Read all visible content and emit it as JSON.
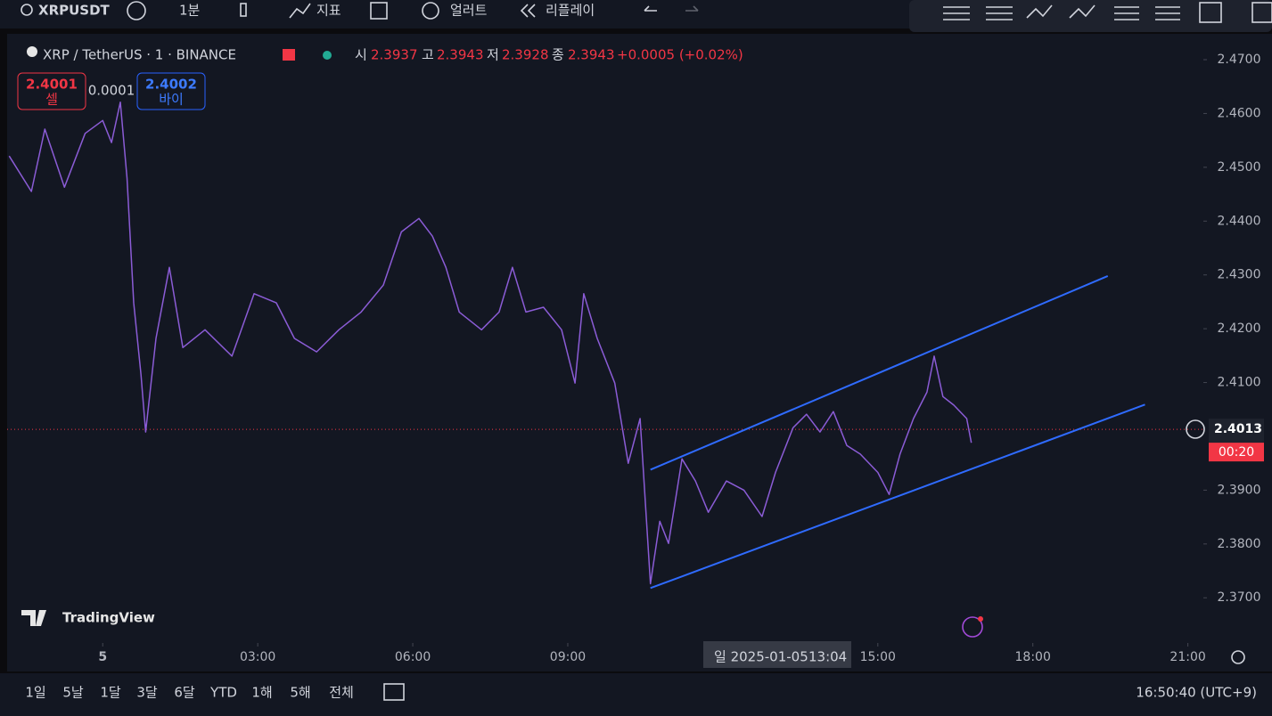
{
  "toolbar": {
    "symbol": "XRPUSDT",
    "interval": "1분",
    "indicators": "지표",
    "alerts": "얼러트",
    "replay": "리플레이"
  },
  "legend": {
    "name": "XRP / TetherUS · 1 · BINANCE",
    "open_label": "시",
    "open": "2.3937",
    "high_label": "고",
    "high": "2.3943",
    "low_label": "저",
    "low": "2.3928",
    "close_label": "종",
    "close": "2.3943",
    "change": "+0.0005 (+0.02%)"
  },
  "trade": {
    "sell_price": "2.4001",
    "sell_label": "셀",
    "spread": "0.0001",
    "buy_price": "2.4002",
    "buy_label": "바이"
  },
  "watermark": "TradingView",
  "crosshair": {
    "date": "일 2025-01-05",
    "time": "13:04"
  },
  "chart_data": {
    "type": "line",
    "x": [
      -1.81,
      -1.38,
      -1.12,
      -0.74,
      -0.34,
      0,
      0.17,
      0.34,
      0.47,
      0.6,
      0.74,
      0.83,
      1.03,
      1.29,
      1.55,
      1.98,
      2.5,
      2.93,
      3.36,
      3.71,
      4.14,
      4.57,
      5.0,
      5.43,
      5.78,
      6.12,
      6.38,
      6.64,
      6.9,
      7.33,
      7.67,
      7.93,
      8.19,
      8.53,
      8.88,
      9.14,
      9.31,
      9.57,
      9.91,
      10.17,
      10.4,
      10.6,
      10.78,
      10.95,
      11.21,
      11.47,
      11.72,
      12.07,
      12.41,
      12.76,
      13.02,
      13.36,
      13.62,
      13.88,
      14.14,
      14.4,
      14.66,
      15.0,
      15.22,
      15.43,
      15.69,
      15.95,
      16.09,
      16.26,
      16.47,
      16.72,
      16.81
    ],
    "series": [
      {
        "name": "XRP / TetherUS",
        "color": "#8b5cd6",
        "values": [
          2.4521,
          2.4455,
          2.4571,
          2.4463,
          2.4563,
          2.4587,
          2.4546,
          2.4621,
          2.448,
          2.4248,
          2.4116,
          2.4008,
          2.4182,
          2.4314,
          2.4165,
          2.4198,
          2.4149,
          2.4265,
          2.4248,
          2.4182,
          2.4157,
          2.4198,
          2.4231,
          2.4281,
          2.438,
          2.4405,
          2.4372,
          2.4314,
          2.4231,
          2.4198,
          2.4231,
          2.4314,
          2.4231,
          2.424,
          2.4198,
          2.4099,
          2.4265,
          2.4182,
          2.4099,
          2.395,
          2.4033,
          2.3726,
          2.3842,
          2.3801,
          2.3958,
          2.3917,
          2.3859,
          2.3917,
          2.39,
          2.3851,
          2.3933,
          2.4016,
          2.4041,
          2.4008,
          2.4046,
          2.3983,
          2.3967,
          2.3933,
          2.3892,
          2.3967,
          2.4033,
          2.4082,
          2.4149,
          2.4074,
          2.4058,
          2.4033,
          2.3988
        ]
      }
    ],
    "xlim": [
      -1.85,
      21.3
    ],
    "ylim": [
      2.3616,
      2.4748
    ],
    "xticks": [
      {
        "value": 0,
        "label": "5"
      },
      {
        "value": 3,
        "label": "03:00"
      },
      {
        "value": 6,
        "label": "06:00"
      },
      {
        "value": 9,
        "label": "09:00"
      },
      {
        "value": 15,
        "label": "15:00"
      },
      {
        "value": 18,
        "label": "18:00"
      },
      {
        "value": 21,
        "label": "21:00"
      }
    ],
    "yticks": [
      {
        "value": 2.47,
        "label": "2.4700"
      },
      {
        "value": 2.46,
        "label": "2.4600"
      },
      {
        "value": 2.45,
        "label": "2.4500"
      },
      {
        "value": 2.44,
        "label": "2.4400"
      },
      {
        "value": 2.43,
        "label": "2.4300"
      },
      {
        "value": 2.42,
        "label": "2.4200"
      },
      {
        "value": 2.41,
        "label": "2.4100"
      },
      {
        "value": 2.39,
        "label": "2.3900"
      },
      {
        "value": 2.38,
        "label": "2.3800"
      },
      {
        "value": 2.37,
        "label": "2.3700"
      }
    ],
    "last_price": {
      "value": 2.4013,
      "label": "2.4013",
      "countdown": "00:20",
      "color": "#f23645"
    },
    "trendlines": [
      {
        "x": [
          10.6,
          19.45
        ],
        "y": [
          2.3938,
          2.4298
        ],
        "color": "#2f6bff"
      },
      {
        "x": [
          10.6,
          20.17
        ],
        "y": [
          2.3718,
          2.4059
        ],
        "color": "#2f6bff"
      }
    ]
  },
  "ranges": [
    "1일",
    "5날",
    "1달",
    "3달",
    "6달",
    "YTD",
    "1해",
    "5해",
    "전체"
  ],
  "clock": "16:50:40 (UTC+9)"
}
